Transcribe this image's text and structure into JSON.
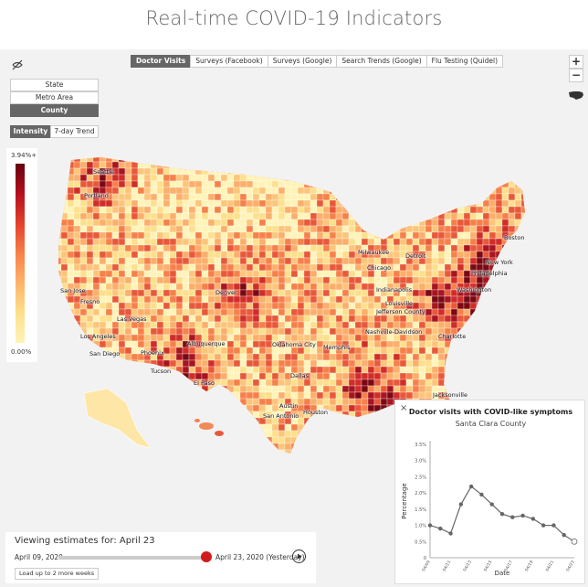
{
  "page": {
    "title": "Real-time COVID-19 Indicators"
  },
  "geo_buttons": [
    "State",
    "Metro Area",
    "County"
  ],
  "geo_selected": "County",
  "view_buttons": {
    "intensity": "Intensity",
    "trend": "7-day Trend"
  },
  "signal_tabs": [
    {
      "label": "Doctor Visits",
      "active": true
    },
    {
      "label": "Surveys (Facebook)",
      "active": false
    },
    {
      "label": "Surveys (Google)",
      "active": false
    },
    {
      "label": "Search Trends (Google)",
      "active": false
    },
    {
      "label": "Flu Testing (Quidel)",
      "active": false
    }
  ],
  "zoom": {
    "in": "+",
    "out": "−"
  },
  "legend": {
    "max": "3.94%+",
    "min": "0.00%"
  },
  "colors": {
    "scale_high": "#67000d",
    "scale_mid": "#e3402b",
    "scale_low": "#fff3b8",
    "active_button": "#666666",
    "slider_handle": "#d01c1c"
  },
  "cities": [
    "Seattle",
    "Portland",
    "San Jose",
    "Fresno",
    "Los Angeles",
    "San Diego",
    "Las Vegas",
    "Phoenix",
    "Tucson",
    "Albuquerque",
    "El Paso",
    "Denver",
    "Oklahoma City",
    "Dallas",
    "Austin",
    "San Antonio",
    "Houston",
    "Milwaukee",
    "Chicago",
    "Detroit",
    "Indianapolis",
    "Louisville",
    "Jefferson County",
    "Nashville-Davidson",
    "Memphis",
    "Charlotte",
    "Washington",
    "Philadelphia",
    "New York",
    "Boston",
    "Jacksonville"
  ],
  "date_panel": {
    "viewing_label": "Viewing estimates for: April 23",
    "start_date": "April 09, 2020",
    "end_date": "April 23, 2020 (Yesterday)",
    "play_icon": "play-icon",
    "load_more": "Load up to 2 more weeks"
  },
  "chart_panel": {
    "close": "×",
    "title": "Doctor visits with COVID-like symptoms",
    "subtitle": "Santa Clara County"
  },
  "chart_data": {
    "type": "line",
    "title": "Doctor visits with COVID-like symptoms",
    "subtitle": "Santa Clara County",
    "xlabel": "Date",
    "ylabel": "Percentage",
    "x": [
      "04/09",
      "04/10",
      "04/11",
      "04/12",
      "04/13",
      "04/14",
      "04/15",
      "04/16",
      "04/17",
      "04/18",
      "04/19",
      "04/20",
      "04/21",
      "04/22",
      "04/23"
    ],
    "x_tick_labels": [
      "04/09",
      "04/11",
      "04/13",
      "04/15",
      "04/17",
      "04/19",
      "04/21",
      "04/23"
    ],
    "values": [
      1.0,
      0.9,
      0.75,
      1.65,
      2.2,
      1.95,
      1.65,
      1.35,
      1.25,
      1.3,
      1.2,
      1.0,
      1.0,
      0.7,
      0.5
    ],
    "y_ticks": [
      "0",
      "0.5%",
      "1.0%",
      "1.5%",
      "2.0%",
      "2.5%",
      "3.0%",
      "3.5%"
    ],
    "ylim": [
      0,
      3.5
    ],
    "grid": false,
    "series_color": "#666666"
  }
}
